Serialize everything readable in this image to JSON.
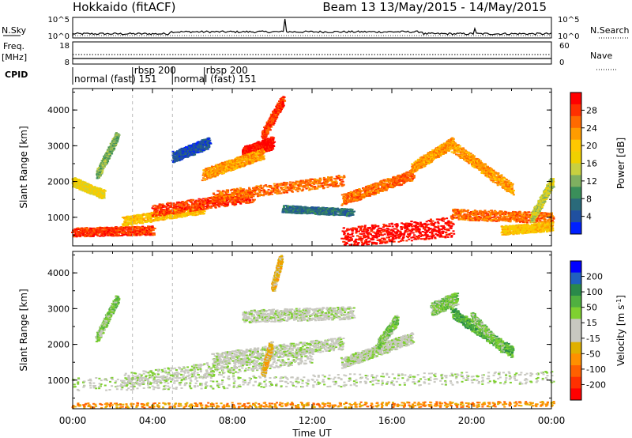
{
  "header": {
    "station": "Hokkaido (fitACF)",
    "beam_info": "Beam 13 13/May/2015 - 14/May/2015"
  },
  "status_panels": {
    "nsky_label": "N.Sky",
    "nsky_ticks": [
      "10^5",
      "10^0"
    ],
    "nsearch_label": "N.Search",
    "nsearch_ticks": [
      "10^5",
      "10^0"
    ],
    "freq_label": "Freq.",
    "freq_unit": "[MHz]",
    "freq_ticks": [
      "18",
      "8"
    ],
    "nave_label": "Nave",
    "nave_ticks": [
      "60",
      "0"
    ],
    "cpid_label": "CPID",
    "cpid_segments": [
      {
        "label": "normal (fast) 151",
        "start_hour": 0.0
      },
      {
        "label": "rbsp 200",
        "start_hour": 3.0
      },
      {
        "label": "normal (fast) 151",
        "start_hour": 5.0
      },
      {
        "label": "rbsp 200",
        "start_hour": 6.6
      }
    ]
  },
  "chart_data": [
    {
      "type": "heatmap",
      "ylabel": "Slant Range [km]",
      "yticks": [
        1000,
        2000,
        3000,
        4000
      ],
      "ylim": [
        200,
        4600
      ],
      "xlim": [
        0,
        24
      ],
      "colorbar": {
        "label": "Power [dB]",
        "ticks": [
          "28",
          "24",
          "20",
          "16",
          "12",
          "8",
          "4"
        ],
        "colors": [
          "#ff0000",
          "#ff3000",
          "#ff6a00",
          "#ff9c00",
          "#ffc800",
          "#f0d000",
          "#c8d040",
          "#7fb060",
          "#3a8f5a",
          "#2a6a7a",
          "#2050a0",
          "#0020ff"
        ]
      },
      "bands": [
        {
          "t0": 0.0,
          "r0": 600,
          "t1": 4.0,
          "r1": 650,
          "w": 250,
          "c": 1
        },
        {
          "t0": 2.5,
          "r0": 900,
          "t1": 6.5,
          "r1": 1250,
          "w": 260,
          "c": 4
        },
        {
          "t0": 4.0,
          "r0": 1200,
          "t1": 9.0,
          "r1": 1600,
          "w": 330,
          "c": 1
        },
        {
          "t0": 7.0,
          "r0": 1600,
          "t1": 13.5,
          "r1": 2050,
          "w": 300,
          "c": 2
        },
        {
          "t0": 8.5,
          "r0": 2800,
          "t1": 10.0,
          "r1": 3100,
          "w": 350,
          "c": 0
        },
        {
          "t0": 9.5,
          "r0": 3300,
          "t1": 10.5,
          "r1": 4300,
          "w": 250,
          "c": 1
        },
        {
          "t0": 6.5,
          "r0": 2200,
          "t1": 9.5,
          "r1": 2800,
          "w": 300,
          "c": 3
        },
        {
          "t0": 13.5,
          "r0": 450,
          "t1": 19.0,
          "r1": 750,
          "w": 550,
          "c": 0
        },
        {
          "t0": 13.5,
          "r0": 1500,
          "t1": 17.0,
          "r1": 2200,
          "w": 300,
          "c": 2
        },
        {
          "t0": 17.0,
          "r0": 2400,
          "t1": 19.0,
          "r1": 3100,
          "w": 280,
          "c": 3
        },
        {
          "t0": 19.0,
          "r0": 3000,
          "t1": 22.0,
          "r1": 1800,
          "w": 300,
          "c": 3
        },
        {
          "t0": 19.0,
          "r0": 1100,
          "t1": 24.0,
          "r1": 1000,
          "w": 300,
          "c": 2
        },
        {
          "t0": 21.5,
          "r0": 650,
          "t1": 24.0,
          "r1": 750,
          "w": 250,
          "c": 4
        },
        {
          "t0": 10.5,
          "r0": 1250,
          "t1": 14.0,
          "r1": 1150,
          "w": 200,
          "c": 9
        },
        {
          "t0": 0.0,
          "r0": 2000,
          "t1": 1.5,
          "r1": 1650,
          "w": 250,
          "c": 5
        },
        {
          "t0": 1.2,
          "r0": 2200,
          "t1": 2.2,
          "r1": 3300,
          "w": 200,
          "c": 7
        },
        {
          "t0": 5.0,
          "r0": 2700,
          "t1": 6.8,
          "r1": 3100,
          "w": 300,
          "c": 10
        },
        {
          "t0": 23.0,
          "r0": 1000,
          "t1": 24.0,
          "r1": 2000,
          "w": 250,
          "c": 6
        }
      ]
    },
    {
      "type": "heatmap",
      "ylabel": "Slant Range [km]",
      "yticks": [
        1000,
        2000,
        3000,
        4000
      ],
      "ylim": [
        200,
        4600
      ],
      "xlim": [
        0,
        24
      ],
      "colorbar": {
        "label": "Velocity [m s^-1]",
        "ticks": [
          "200",
          "100",
          "50",
          "15",
          "-15",
          "-50",
          "-100",
          "-200"
        ],
        "colors": [
          "#0000ff",
          "#2060c0",
          "#2a8a4a",
          "#50b040",
          "#7fd030",
          "#c8c8c0",
          "#c8c8c0",
          "#e0b000",
          "#ff9000",
          "#ff6000",
          "#ff3000",
          "#ff0000"
        ]
      },
      "bands": [
        {
          "t0": 0.0,
          "r0": 900,
          "t1": 24.0,
          "r1": 1100,
          "w": 350,
          "c": 5
        },
        {
          "t0": 2.5,
          "r0": 1000,
          "t1": 12.0,
          "r1": 1700,
          "w": 400,
          "c": 5
        },
        {
          "t0": 7.0,
          "r0": 1600,
          "t1": 13.5,
          "r1": 2050,
          "w": 350,
          "c": 5
        },
        {
          "t0": 8.5,
          "r0": 2800,
          "t1": 14.0,
          "r1": 2900,
          "w": 350,
          "c": 5
        },
        {
          "t0": 13.5,
          "r0": 1500,
          "t1": 17.0,
          "r1": 2200,
          "w": 300,
          "c": 5
        },
        {
          "t0": 18.0,
          "r0": 3000,
          "t1": 19.2,
          "r1": 3300,
          "w": 350,
          "c": 4
        },
        {
          "t0": 19.0,
          "r0": 2900,
          "t1": 22.0,
          "r1": 1800,
          "w": 300,
          "c": 3
        },
        {
          "t0": 10.0,
          "r0": 3600,
          "t1": 10.4,
          "r1": 4400,
          "w": 200,
          "c": 7
        },
        {
          "t0": 0.0,
          "r0": 300,
          "t1": 24.0,
          "r1": 350,
          "w": 150,
          "c": 8
        },
        {
          "t0": 1.2,
          "r0": 2200,
          "t1": 2.2,
          "r1": 3300,
          "w": 200,
          "c": 4
        },
        {
          "t0": 9.5,
          "r0": 1200,
          "t1": 9.9,
          "r1": 2000,
          "w": 200,
          "c": 7
        },
        {
          "t0": 15.3,
          "r0": 2000,
          "t1": 16.2,
          "r1": 2700,
          "w": 250,
          "c": 4
        },
        {
          "t0": 20.0,
          "r0": 2800,
          "t1": 21.5,
          "r1": 1900,
          "w": 200,
          "c": 4
        }
      ]
    }
  ],
  "x_axis": {
    "tick_labels": [
      "00:00",
      "04:00",
      "08:00",
      "12:00",
      "16:00",
      "20:00",
      "00:00"
    ],
    "xlabel": "Time UT"
  }
}
